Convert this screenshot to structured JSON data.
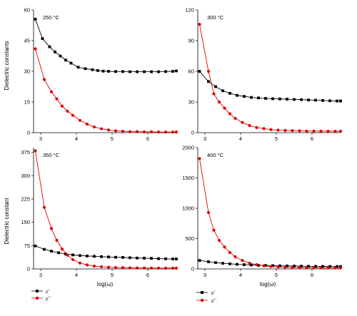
{
  "figure": {
    "ylabel_top": "Dielectric constants",
    "ylabel_bottom": "Dielectric constant",
    "xlabel": "log(ω)",
    "legend": [
      {
        "label": "ε′",
        "color": "#000000",
        "marker": "square"
      },
      {
        "label": "ε′′",
        "color": "#e00000",
        "marker": "circle"
      }
    ]
  },
  "chart_data": [
    {
      "type": "line",
      "panel_label": "250 °C",
      "xlim": [
        2.8,
        6.8
      ],
      "xticks": [
        3,
        4,
        5,
        6
      ],
      "ylim": [
        0,
        60
      ],
      "yticks": [
        0,
        15,
        30,
        45,
        60
      ],
      "series": [
        {
          "name": "ε′",
          "color": "#000000",
          "marker": "square",
          "x": [
            2.85,
            3.05,
            3.25,
            3.4,
            3.55,
            3.7,
            3.85,
            4.05,
            4.25,
            4.45,
            4.6,
            4.75,
            4.9,
            5.1,
            5.3,
            5.5,
            5.7,
            5.9,
            6.1,
            6.3,
            6.5,
            6.7,
            6.8
          ],
          "y": [
            55.5,
            46,
            42,
            39.5,
            37.5,
            35.5,
            34,
            32,
            31.3,
            30.8,
            30.4,
            30.1,
            30,
            29.9,
            29.9,
            29.8,
            29.8,
            29.8,
            29.8,
            29.8,
            29.9,
            30,
            30.2
          ]
        },
        {
          "name": "ε′′",
          "color": "#e00000",
          "marker": "circle",
          "x": [
            2.85,
            3.1,
            3.3,
            3.45,
            3.6,
            3.75,
            3.9,
            4.1,
            4.3,
            4.5,
            4.7,
            4.9,
            5.1,
            5.3,
            5.5,
            5.7,
            5.9,
            6.1,
            6.3,
            6.5,
            6.7,
            6.8
          ],
          "y": [
            41,
            26,
            20,
            16.5,
            13,
            10.5,
            8.5,
            6,
            4.2,
            2.8,
            1.9,
            1.3,
            0.9,
            0.7,
            0.5,
            0.5,
            0.4,
            0.4,
            0.3,
            0.3,
            0.3,
            0.3
          ]
        }
      ]
    },
    {
      "type": "line",
      "panel_label": "300 °C",
      "xlim": [
        2.8,
        6.8
      ],
      "xticks": [
        3,
        4,
        5,
        6
      ],
      "ylim": [
        0,
        120
      ],
      "yticks": [
        0,
        30,
        60,
        90,
        120
      ],
      "series": [
        {
          "name": "ε′",
          "color": "#000000",
          "marker": "square",
          "x": [
            2.85,
            3.1,
            3.3,
            3.5,
            3.7,
            3.9,
            4.1,
            4.3,
            4.5,
            4.7,
            4.9,
            5.1,
            5.3,
            5.5,
            5.7,
            5.9,
            6.1,
            6.3,
            6.5,
            6.7,
            6.8
          ],
          "y": [
            60,
            50,
            45,
            41,
            38.5,
            36.5,
            35.5,
            34.5,
            34,
            33.5,
            33.2,
            33,
            32.8,
            32.5,
            32.3,
            32,
            31.8,
            31.5,
            31.2,
            31,
            31
          ]
        },
        {
          "name": "ε′′",
          "color": "#e00000",
          "marker": "circle",
          "x": [
            2.85,
            3.1,
            3.25,
            3.4,
            3.55,
            3.7,
            3.85,
            4.05,
            4.25,
            4.45,
            4.65,
            4.85,
            5.05,
            5.25,
            5.45,
            5.65,
            5.85,
            6.05,
            6.25,
            6.45,
            6.65,
            6.8
          ],
          "y": [
            106,
            60,
            38,
            30,
            24,
            18.5,
            14,
            10,
            7,
            5,
            4,
            3,
            2.5,
            2.2,
            2,
            1.8,
            1.6,
            1.5,
            1.5,
            1.4,
            1.4,
            1.4
          ]
        }
      ]
    },
    {
      "type": "line",
      "panel_label": "350 °C",
      "xlim": [
        2.8,
        6.8
      ],
      "xticks": [
        3,
        4,
        5,
        6
      ],
      "ylim": [
        0,
        390
      ],
      "yticks": [
        0,
        75,
        150,
        225,
        300,
        375
      ],
      "series": [
        {
          "name": "ε′",
          "color": "#000000",
          "marker": "square",
          "x": [
            2.85,
            3.1,
            3.3,
            3.5,
            3.7,
            3.9,
            4.1,
            4.3,
            4.5,
            4.7,
            4.9,
            5.1,
            5.3,
            5.5,
            5.7,
            5.9,
            6.1,
            6.3,
            6.5,
            6.7,
            6.8
          ],
          "y": [
            74,
            63,
            57,
            52,
            48,
            45,
            43,
            41.5,
            40.5,
            39.5,
            38.5,
            37.5,
            37,
            36,
            35,
            34.5,
            34,
            33,
            32.5,
            32,
            32
          ]
        },
        {
          "name": "ε′′",
          "color": "#e00000",
          "marker": "circle",
          "x": [
            2.85,
            3.1,
            3.3,
            3.45,
            3.6,
            3.75,
            3.9,
            4.1,
            4.3,
            4.5,
            4.7,
            4.9,
            5.1,
            5.3,
            5.5,
            5.7,
            5.9,
            6.1,
            6.3,
            6.5,
            6.7,
            6.8
          ],
          "y": [
            380,
            198,
            130,
            92,
            64,
            44,
            30,
            19,
            13,
            9,
            7,
            5.5,
            4.5,
            4,
            3.5,
            3,
            3,
            2.5,
            2.5,
            2.5,
            2.5,
            2.5
          ]
        }
      ]
    },
    {
      "type": "line",
      "panel_label": "400 °C",
      "xlim": [
        2.8,
        6.8
      ],
      "xticks": [
        3,
        4,
        5,
        6
      ],
      "ylim": [
        0,
        2000
      ],
      "yticks": [
        0,
        500,
        1000,
        1500,
        2000
      ],
      "series": [
        {
          "name": "ε′",
          "color": "#000000",
          "marker": "square",
          "x": [
            2.85,
            3.1,
            3.3,
            3.5,
            3.7,
            3.9,
            4.1,
            4.3,
            4.5,
            4.7,
            4.9,
            5.1,
            5.3,
            5.5,
            5.7,
            5.9,
            6.1,
            6.3,
            6.5,
            6.7,
            6.8
          ],
          "y": [
            140,
            118,
            104,
            93,
            84,
            76,
            70,
            65,
            60,
            57,
            54,
            51,
            49,
            47,
            45,
            43,
            42,
            41,
            40,
            39,
            39
          ]
        },
        {
          "name": "ε′′",
          "color": "#e00000",
          "marker": "circle",
          "x": [
            2.85,
            3.1,
            3.25,
            3.4,
            3.55,
            3.7,
            3.85,
            4.05,
            4.25,
            4.45,
            4.65,
            4.85,
            5.05,
            5.25,
            5.45,
            5.65,
            5.85,
            6.05,
            6.25,
            6.45,
            6.65,
            6.8
          ],
          "y": [
            1820,
            930,
            640,
            470,
            360,
            270,
            200,
            140,
            95,
            70,
            52,
            40,
            32,
            27,
            24,
            22,
            20,
            19,
            18,
            17,
            17,
            17
          ]
        }
      ]
    }
  ]
}
